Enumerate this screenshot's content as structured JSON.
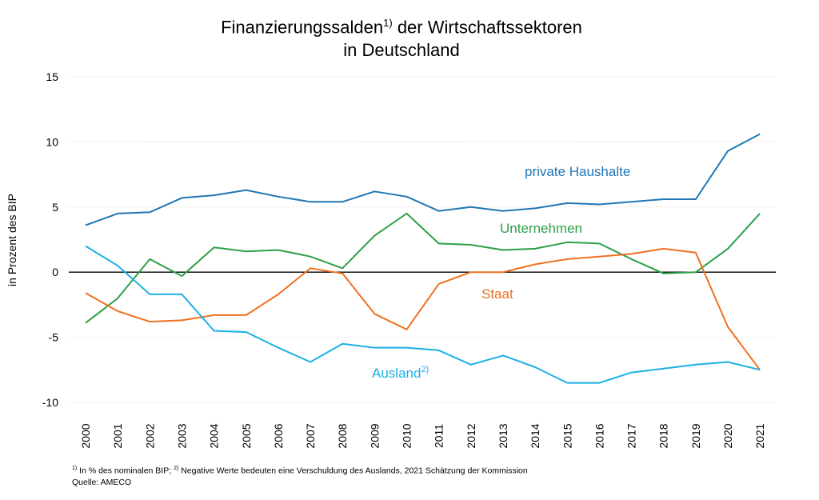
{
  "chart_data": {
    "type": "line",
    "title_line1": "Finanzierungssalden",
    "title_sup": "1)",
    "title_line1_rest": " der Wirtschaftssektoren",
    "title_line2": "in Deutschland",
    "ylabel": "in Prozent des BIP",
    "xlabel": "",
    "ylim": [
      -10,
      15
    ],
    "yticks": [
      15,
      10,
      5,
      0,
      -5,
      -10
    ],
    "grid": true,
    "categories": [
      "2000",
      "2001",
      "2002",
      "2003",
      "2004",
      "2005",
      "2006",
      "2007",
      "2008",
      "2009",
      "2010",
      "2011",
      "2012",
      "2013",
      "2014",
      "2015",
      "2016",
      "2017",
      "2018",
      "2019",
      "2020",
      "2021"
    ],
    "series": [
      {
        "name": "private Haushalte",
        "color": "#1f77b4",
        "values": [
          3.6,
          4.5,
          4.6,
          5.7,
          5.9,
          6.3,
          5.8,
          5.4,
          5.4,
          6.2,
          5.8,
          4.7,
          5.0,
          4.7,
          4.9,
          5.3,
          5.2,
          5.4,
          5.6,
          5.6,
          9.3,
          10.6
        ]
      },
      {
        "name": "Unternehmen",
        "color": "#2ca048",
        "values": [
          -3.9,
          -2.0,
          1.0,
          -0.3,
          1.9,
          1.6,
          1.7,
          1.2,
          0.3,
          2.8,
          4.5,
          2.2,
          2.1,
          1.7,
          1.8,
          2.3,
          2.2,
          1.0,
          -0.1,
          0.0,
          1.8,
          4.5
        ]
      },
      {
        "name": "Staat",
        "color": "#f07020",
        "values": [
          -1.6,
          -3.0,
          -3.8,
          -3.7,
          -3.3,
          -3.3,
          -1.7,
          0.3,
          -0.1,
          -3.2,
          -4.4,
          -0.9,
          0.0,
          0.0,
          0.6,
          1.0,
          1.2,
          1.4,
          1.8,
          1.5,
          -4.2,
          -7.5
        ]
      },
      {
        "name": "Ausland",
        "name_sup": "2)",
        "color": "#1cb0e6",
        "values": [
          2.0,
          0.5,
          -1.7,
          -1.7,
          -4.5,
          -4.6,
          -5.8,
          -6.9,
          -5.5,
          -5.8,
          -5.8,
          -6.0,
          -7.1,
          -6.4,
          -7.3,
          -8.5,
          -8.5,
          -7.7,
          -7.4,
          -7.1,
          -6.9,
          -7.5
        ]
      }
    ]
  },
  "footnote": {
    "sup1": "1)",
    "text1": " In % des nominalen BIP; ",
    "sup2": "2)",
    "text2": " Negative Werte bedeuten eine Verschuldung des Auslands, 2021 Schätzung der Kommission",
    "source": "Quelle: AMECO"
  }
}
